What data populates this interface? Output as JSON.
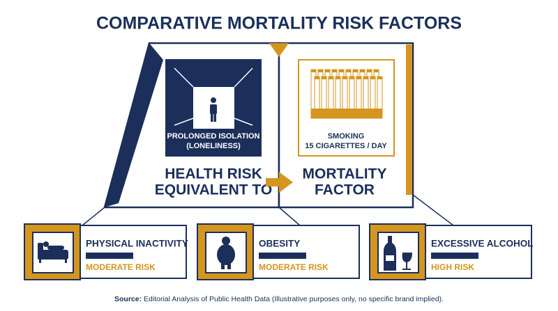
{
  "title": "COMPARATIVE MORTALITY RISK FACTORS",
  "main": {
    "left_box": {
      "lines": [
        "PROLONGED ISOLATION",
        "(LONELINESS)"
      ]
    },
    "right_box": {
      "lines": [
        "SMOKING",
        "15 CIGARETTES / DAY"
      ]
    },
    "left_caption": [
      "HEALTH RISK",
      "EQUIVALENT TO"
    ],
    "right_caption": [
      "MORTALITY",
      "FACTOR"
    ]
  },
  "cards": [
    {
      "title": "PHYSICAL INACTIVITY",
      "risk": "MODERATE RISK"
    },
    {
      "title": "OBESITY",
      "risk": "MODERATE RISK"
    },
    {
      "title": "EXCESSIVE ALCOHOL",
      "risk": "HIGH RISK"
    }
  ],
  "source": {
    "label": "Source:",
    "text": "Editorial Analysis of Public Health Data (Illustrative purposes only, no specific brand implied)."
  }
}
